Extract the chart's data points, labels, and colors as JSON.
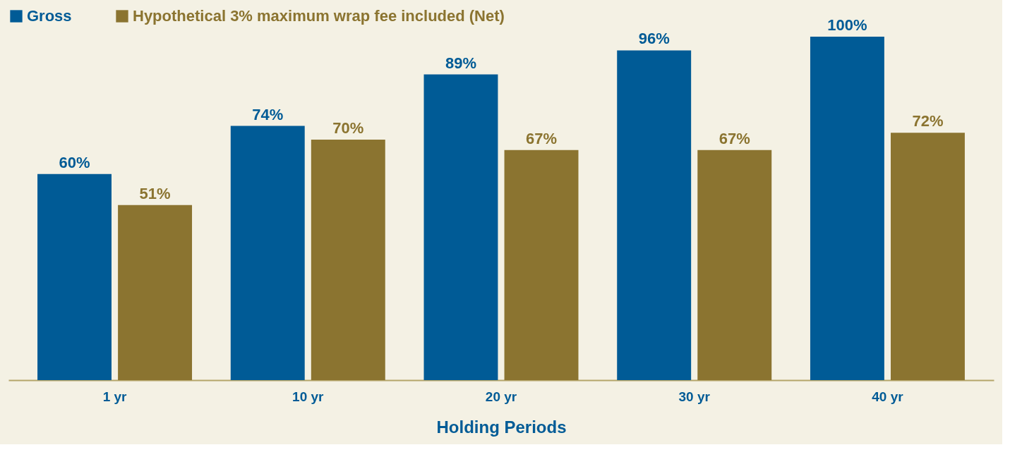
{
  "chart_data": {
    "type": "bar",
    "xlabel": "Holding Periods",
    "categories": [
      "1 yr",
      "10 yr",
      "20 yr",
      "30 yr",
      "40 yr"
    ],
    "series": [
      {
        "name": "Gross",
        "color": "#005b96",
        "values": [
          60,
          74,
          89,
          96,
          100
        ],
        "value_labels": [
          "60%",
          "74%",
          "89%",
          "96%",
          "100%"
        ]
      },
      {
        "name": "Hypothetical 3% maximum wrap fee included (Net)",
        "color": "#8b7430",
        "values": [
          51,
          70,
          67,
          67,
          72
        ],
        "value_labels": [
          "51%",
          "70%",
          "67%",
          "67%",
          "72%"
        ]
      }
    ],
    "legend": "top",
    "grid": false
  }
}
